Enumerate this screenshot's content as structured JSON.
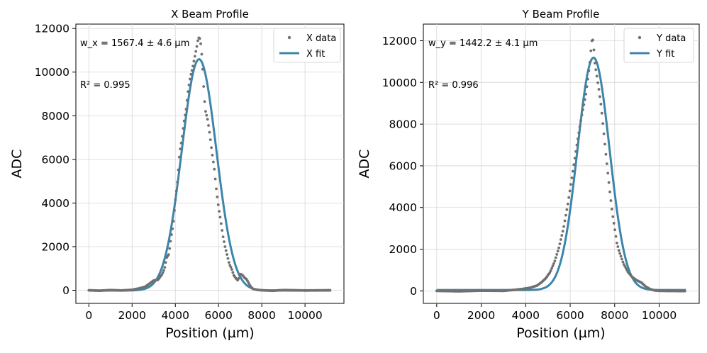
{
  "chart_data": [
    {
      "type": "scatter",
      "title": "X Beam Profile",
      "xlabel": "Position (µm)",
      "ylabel": "ADC",
      "xlim": [
        -600,
        11800
      ],
      "ylim": [
        -600,
        12200
      ],
      "xticks": [
        0,
        2000,
        4000,
        6000,
        8000,
        10000
      ],
      "yticks": [
        0,
        2000,
        4000,
        6000,
        8000,
        10000,
        12000
      ],
      "grid": true,
      "legend_position": "top-right",
      "annotations": [
        "w_x = 1567.4 ± 4.6 μm",
        "R² = 0.995"
      ],
      "series": [
        {
          "name": "X data",
          "kind": "scatter",
          "color": "#707070",
          "x": [
            0,
            500,
            1000,
            1500,
            2000,
            2300,
            2600,
            2800,
            3000,
            3200,
            3400,
            3500,
            3600,
            3700,
            3800,
            3900,
            4000,
            4100,
            4200,
            4300,
            4400,
            4500,
            4600,
            4700,
            4800,
            4900,
            5000,
            5050,
            5100,
            5150,
            5200,
            5250,
            5300,
            5350,
            5400,
            5500,
            5600,
            5700,
            5800,
            5900,
            6000,
            6100,
            6200,
            6300,
            6400,
            6500,
            6600,
            6700,
            6800,
            6900,
            7000,
            7100,
            7200,
            7300,
            7400,
            7500,
            7600,
            7800,
            8000,
            8500,
            9000,
            10000,
            11200
          ],
          "y": [
            0,
            -20,
            10,
            -10,
            20,
            80,
            160,
            300,
            450,
            480,
            750,
            1000,
            1500,
            1650,
            2400,
            3000,
            4100,
            5000,
            6300,
            6900,
            7700,
            8300,
            9200,
            9800,
            10200,
            10700,
            11200,
            11500,
            11600,
            11500,
            11100,
            10400,
            9500,
            8700,
            8200,
            7800,
            7100,
            6300,
            5600,
            4600,
            3800,
            3200,
            2500,
            2000,
            1600,
            1200,
            1000,
            700,
            550,
            450,
            750,
            700,
            580,
            500,
            320,
            150,
            60,
            20,
            0,
            -20,
            10,
            -10,
            0
          ]
        },
        {
          "name": "X fit",
          "kind": "line",
          "color": "#3b86aa",
          "mean": 5100,
          "sigma": 800,
          "amplitude": 10600,
          "offset": -10,
          "x_range": [
            0,
            11200
          ]
        }
      ]
    },
    {
      "type": "scatter",
      "title": "Y Beam Profile",
      "xlabel": "Position (µm)",
      "ylabel": "ADC",
      "xlim": [
        -600,
        11800
      ],
      "ylim": [
        -600,
        12800
      ],
      "xticks": [
        0,
        2000,
        4000,
        6000,
        8000,
        10000
      ],
      "yticks": [
        0,
        2000,
        4000,
        6000,
        8000,
        10000,
        12000
      ],
      "grid": true,
      "legend_position": "top-right",
      "annotations": [
        "w_y = 1442.2 ± 4.1 μm",
        "R² = 0.996"
      ],
      "series": [
        {
          "name": "Y data",
          "kind": "scatter",
          "color": "#707070",
          "x": [
            0,
            1000,
            2000,
            3000,
            3800,
            4200,
            4500,
            4700,
            4900,
            5100,
            5300,
            5500,
            5700,
            5900,
            6100,
            6300,
            6500,
            6700,
            6800,
            6900,
            6950,
            7000,
            7050,
            7100,
            7200,
            7300,
            7400,
            7500,
            7600,
            7700,
            7800,
            7900,
            8000,
            8100,
            8200,
            8300,
            8400,
            8600,
            8800,
            9000,
            9200,
            9400,
            9600,
            9800,
            10000,
            11200
          ],
          "y": [
            0,
            -20,
            10,
            0,
            80,
            150,
            250,
            400,
            600,
            900,
            1400,
            2100,
            3000,
            4200,
            5600,
            7000,
            8300,
            9400,
            10200,
            11100,
            11800,
            12200,
            11800,
            11000,
            10300,
            9600,
            8800,
            7700,
            6600,
            5600,
            4600,
            3700,
            3000,
            2300,
            1900,
            1600,
            1300,
            900,
            650,
            500,
            400,
            200,
            80,
            20,
            0,
            -10
          ]
        },
        {
          "name": "Y fit",
          "kind": "line",
          "color": "#3b86aa",
          "mean": 7050,
          "sigma": 720,
          "amplitude": 11150,
          "offset": 40,
          "x_range": [
            0,
            11200
          ]
        }
      ]
    }
  ]
}
